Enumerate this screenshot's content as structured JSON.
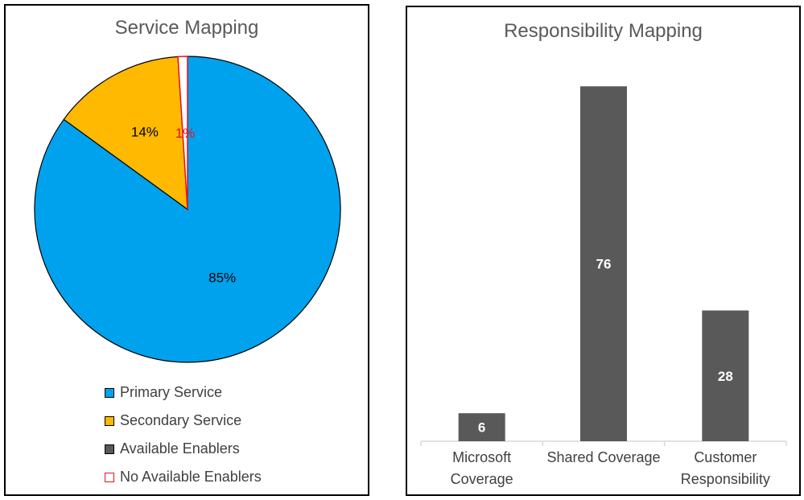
{
  "chart_data": [
    {
      "type": "pie",
      "title": "Service Mapping",
      "slices": [
        {
          "name": "Primary Service",
          "value": 85,
          "label": "85%",
          "color": "#00A2ED"
        },
        {
          "name": "Secondary Service",
          "value": 14,
          "label": "14%",
          "color": "#FFB900"
        },
        {
          "name": "Available Enablers",
          "value": 0,
          "label": "",
          "color": "#595959"
        },
        {
          "name": "No Available Enablers",
          "value": 1,
          "label": "1%",
          "color": "#FFFFFF",
          "stroke": "#E81123"
        }
      ],
      "legend_position": "bottom"
    },
    {
      "type": "bar",
      "title": "Responsibility Mapping",
      "categories": [
        "Microsoft Coverage",
        "Shared Coverage",
        "Customer Responsibility"
      ],
      "category_lines": [
        [
          "Microsoft",
          "Coverage"
        ],
        [
          "Shared Coverage"
        ],
        [
          "Customer",
          "Responsibility"
        ]
      ],
      "values": [
        6,
        76,
        28
      ],
      "ylim": [
        0,
        80
      ],
      "bar_color": "#595959",
      "data_labels": true,
      "grid": false
    }
  ]
}
